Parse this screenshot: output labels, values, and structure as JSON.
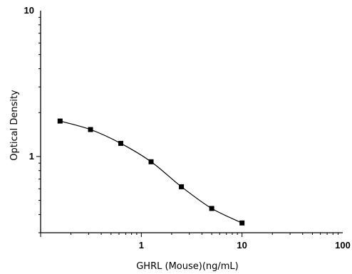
{
  "chart_data": {
    "type": "scatter",
    "xlabel": "GHRL (Mouse)(ng/mL)",
    "ylabel": "Optical Density",
    "x_scale": "log",
    "y_scale": "log",
    "xlim": [
      0.1,
      100
    ],
    "ylim": [
      0.3,
      10
    ],
    "x_ticks": [
      {
        "value": 1,
        "label": "1"
      },
      {
        "value": 10,
        "label": "10"
      },
      {
        "value": 100,
        "label": "100"
      }
    ],
    "y_ticks": [
      {
        "value": 1,
        "label": "1"
      },
      {
        "value": 10,
        "label": "10"
      }
    ],
    "grid": false,
    "series": [
      {
        "x": [
          0.156,
          0.313,
          0.625,
          1.25,
          2.5,
          5,
          10
        ],
        "y": [
          1.75,
          1.53,
          1.23,
          0.92,
          0.62,
          0.44,
          0.35
        ],
        "marker": "square",
        "fit_line": true,
        "color": "#000000"
      }
    ]
  }
}
